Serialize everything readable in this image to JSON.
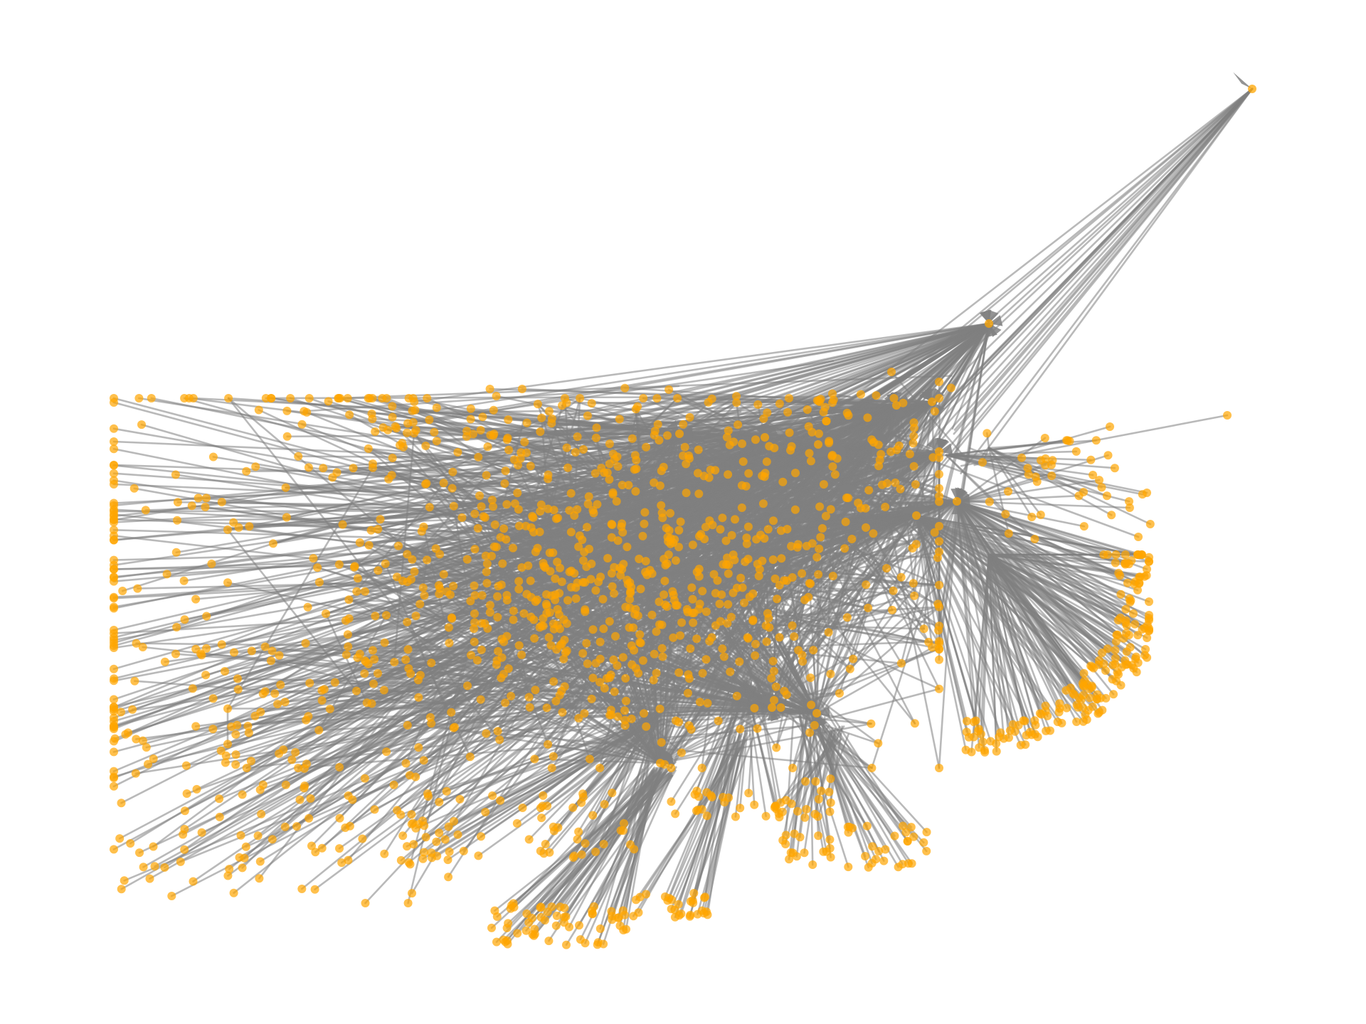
{
  "diagram": {
    "type": "directed-network-graph",
    "layout": "force-directed",
    "node_shape": "circle",
    "edge_style": "straight-arrow",
    "has_title": false,
    "has_labels": false,
    "has_axes": false,
    "hubs_visible": 16,
    "colors": {
      "background": "#ffffff",
      "node_fill": "#ffa500",
      "edge_stroke": "#808080",
      "arrow_head": "#808080"
    }
  }
}
